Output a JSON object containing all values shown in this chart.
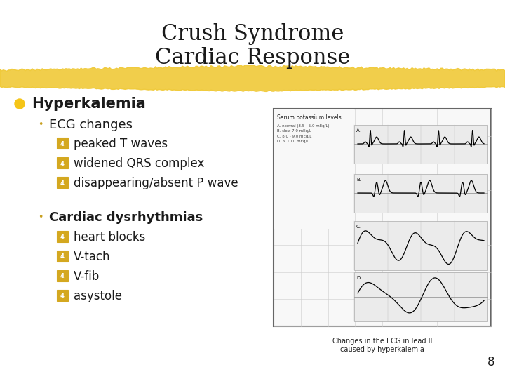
{
  "title_line1": "Crush Syndrome",
  "title_line2": "Cardiac Response",
  "title_fontsize": 22,
  "title_color": "#1a1a1a",
  "background_color": "#ffffff",
  "highlight_color": "#f0c832",
  "bullet_color": "#f5c518",
  "sub_bullet_color": "#c8a020",
  "arrow_color": "#d4a820",
  "text_color": "#1a1a1a",
  "page_number": "8",
  "main_bullet": "Hyperkalemia",
  "sub_bullet1_text": "ECG changes",
  "sub_bullet1_items": [
    "peaked T waves",
    "widened QRS complex",
    "disappearing/absent P wave"
  ],
  "sub_bullet2_text": "Cardiac dysrhythmias",
  "sub_bullet2_items": [
    "heart blocks",
    "V-tach",
    "V-fib",
    "asystole"
  ],
  "image_caption": "Changes in the ECG in lead II\ncaused by hyperkalemia",
  "img_legend": "A. normal (3.5 - 5.0 mEq/L)\nB. slow 7.0 mEq/L\nC. 8.0 - 9.0 mEq/L\nD. > 10.0 mEq/L"
}
